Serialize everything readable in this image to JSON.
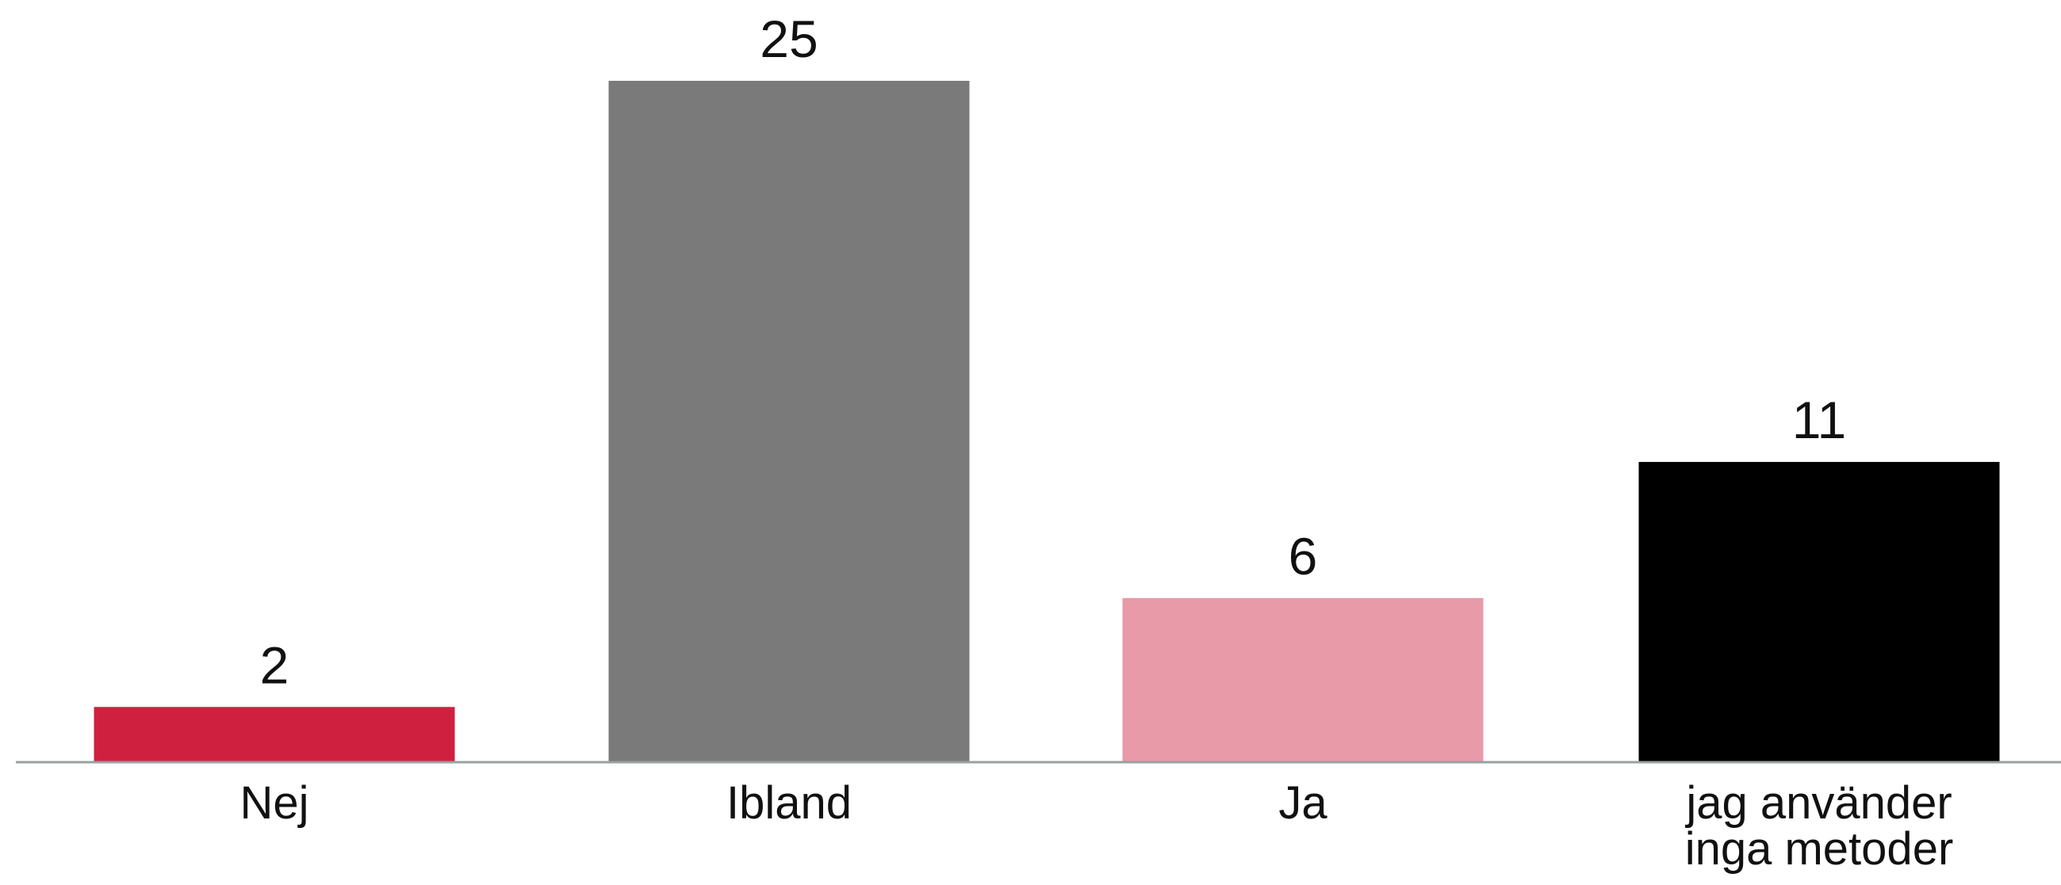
{
  "chart_data": {
    "type": "bar",
    "categories": [
      "Nej",
      "Ibland",
      "Ja",
      "jag använder inga metoder"
    ],
    "category_lines": [
      [
        "Nej"
      ],
      [
        "Ibland"
      ],
      [
        "Ja"
      ],
      [
        "jag använder",
        "inga metoder"
      ]
    ],
    "values": [
      2,
      25,
      6,
      11
    ],
    "value_labels": [
      "2",
      "25",
      "6",
      "11"
    ],
    "colors": [
      "#d02040",
      "#7a7a7a",
      "#e89aa8",
      "#000000"
    ],
    "axis_color": "#9aa0a0",
    "ylim": [
      0,
      25
    ],
    "grid": false,
    "legend": "none"
  }
}
